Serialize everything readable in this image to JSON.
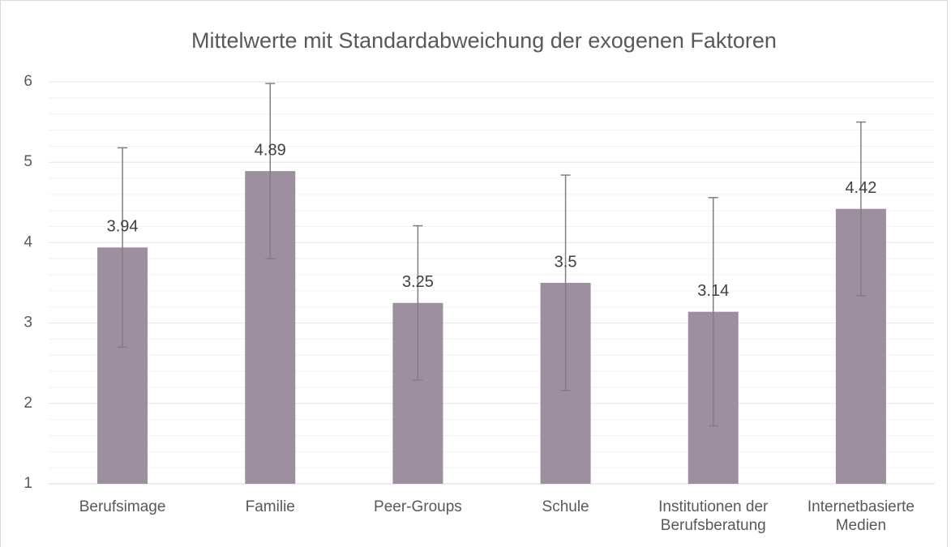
{
  "chart_data": {
    "type": "bar",
    "title": "Mittelwerte mit Standardabweichung der exogenen Faktoren",
    "categories": [
      "Berufsimage",
      "Familie",
      "Peer-Groups",
      "Schule",
      "Institutionen der Berufsberatung",
      "Internetbasierte Medien"
    ],
    "values": [
      3.94,
      4.89,
      3.25,
      3.5,
      3.14,
      4.42
    ],
    "errors": [
      1.24,
      1.09,
      0.96,
      1.34,
      1.42,
      1.08
    ],
    "color": "#9d8f9f",
    "error_color": "#7f7f7f",
    "ylim": [
      1,
      6
    ],
    "yticks": [
      1,
      2,
      3,
      4,
      5,
      6
    ],
    "yticks_minor": [
      1.2,
      1.4,
      1.6,
      1.8,
      2.2,
      2.4,
      2.6,
      2.8,
      3.2,
      3.4,
      3.6,
      3.8,
      4.2,
      4.4,
      4.6,
      4.8,
      5.2,
      5.4,
      5.6,
      5.8
    ],
    "grid": true
  }
}
